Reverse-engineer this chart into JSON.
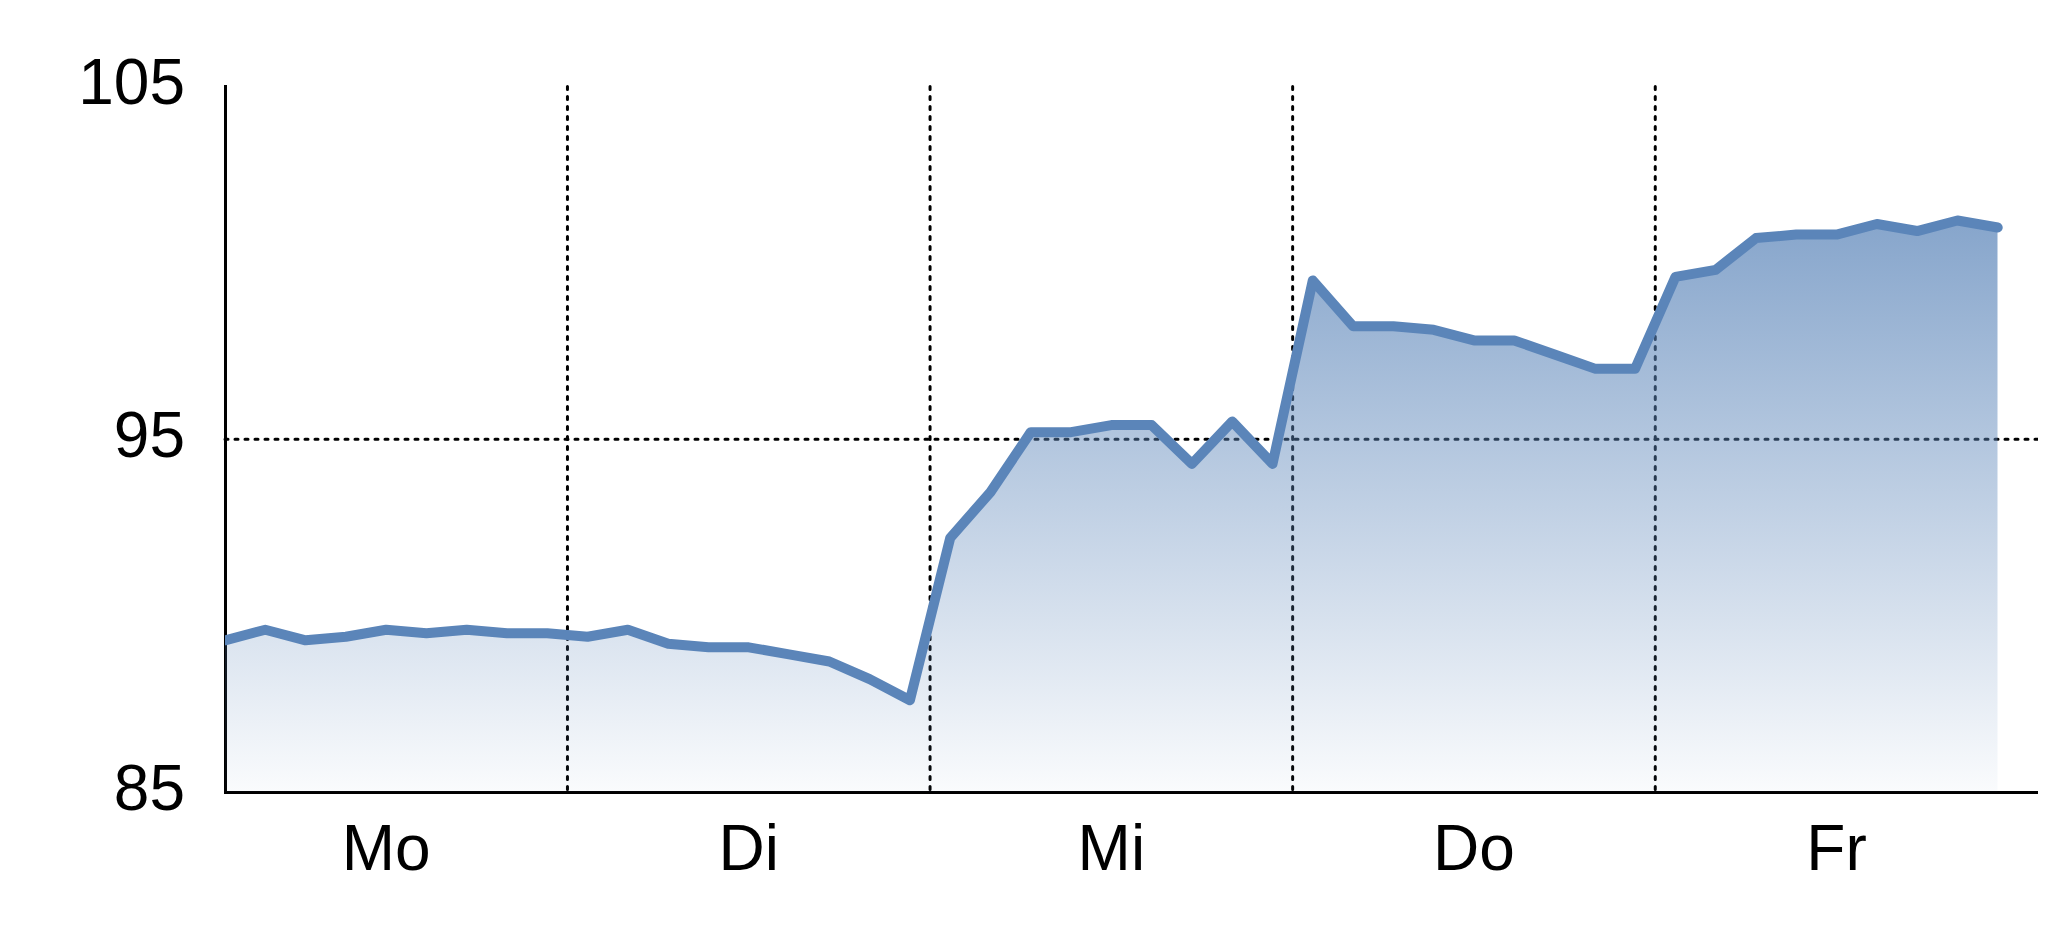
{
  "chart_data": {
    "type": "area",
    "categories": [
      null,
      null,
      null,
      null,
      "Mo",
      null,
      null,
      null,
      null,
      null,
      null,
      null,
      null,
      "Di",
      null,
      null,
      null,
      null,
      null,
      null,
      null,
      null,
      "Mi",
      null,
      null,
      null,
      null,
      null,
      null,
      null,
      null,
      "Do",
      null,
      null,
      null,
      null,
      null,
      null,
      null,
      null,
      "Fr",
      null,
      null,
      null,
      null
    ],
    "series": [
      {
        "color": "#5b85b9",
        "values": [
          89.3,
          89.6,
          89.3,
          89.4,
          89.6,
          89.5,
          89.6,
          89.5,
          89.5,
          89.4,
          89.6,
          89.2,
          89.1,
          89.1,
          88.9,
          88.7,
          88.2,
          87.6,
          92.2,
          93.5,
          95.2,
          95.2,
          95.4,
          95.4,
          94.3,
          95.5,
          94.3,
          99.5,
          98.2,
          98.2,
          98.1,
          97.8,
          97.8,
          97.4,
          97.0,
          97.0,
          99.6,
          99.8,
          100.7,
          100.8,
          100.8,
          101.1,
          100.9,
          101.2,
          101.0
        ]
      }
    ],
    "ylim": [
      85,
      105
    ],
    "yticks": [
      85,
      95,
      105
    ],
    "grid": true,
    "legend": false,
    "marker": "none",
    "line_style": "solid"
  }
}
